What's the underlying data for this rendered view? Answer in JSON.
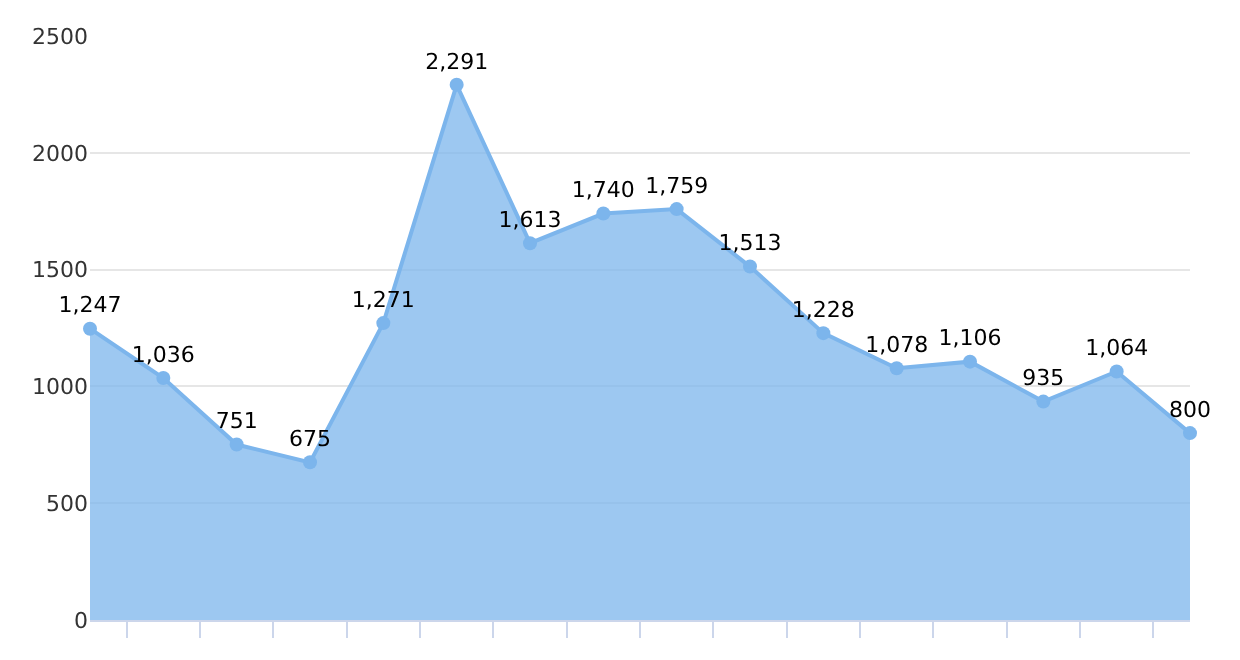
{
  "chart_data": {
    "type": "area",
    "categories": [
      null,
      null,
      null,
      null,
      null,
      null,
      null,
      null,
      null,
      null,
      null,
      null,
      null,
      null,
      null,
      null
    ],
    "series": [
      {
        "color": "#7cb5ec",
        "values": [
          1247,
          1036,
          751,
          675,
          1271,
          2291,
          1613,
          1740,
          1759,
          1513,
          1228,
          1078,
          1106,
          935,
          1064,
          800
        ],
        "value_labels": [
          "1,247",
          "1,036",
          "751",
          "675",
          "1,271",
          "2,291",
          "1,613",
          "1,740",
          "1,759",
          "1,513",
          "1,228",
          "1,078",
          "1,106",
          "935",
          "1,064",
          "800"
        ]
      }
    ],
    "ylim": [
      0,
      2500
    ],
    "yticks": [
      0,
      500,
      1000,
      1500,
      2000,
      2500
    ],
    "grid": "y",
    "marker": "circle",
    "legend": false
  }
}
